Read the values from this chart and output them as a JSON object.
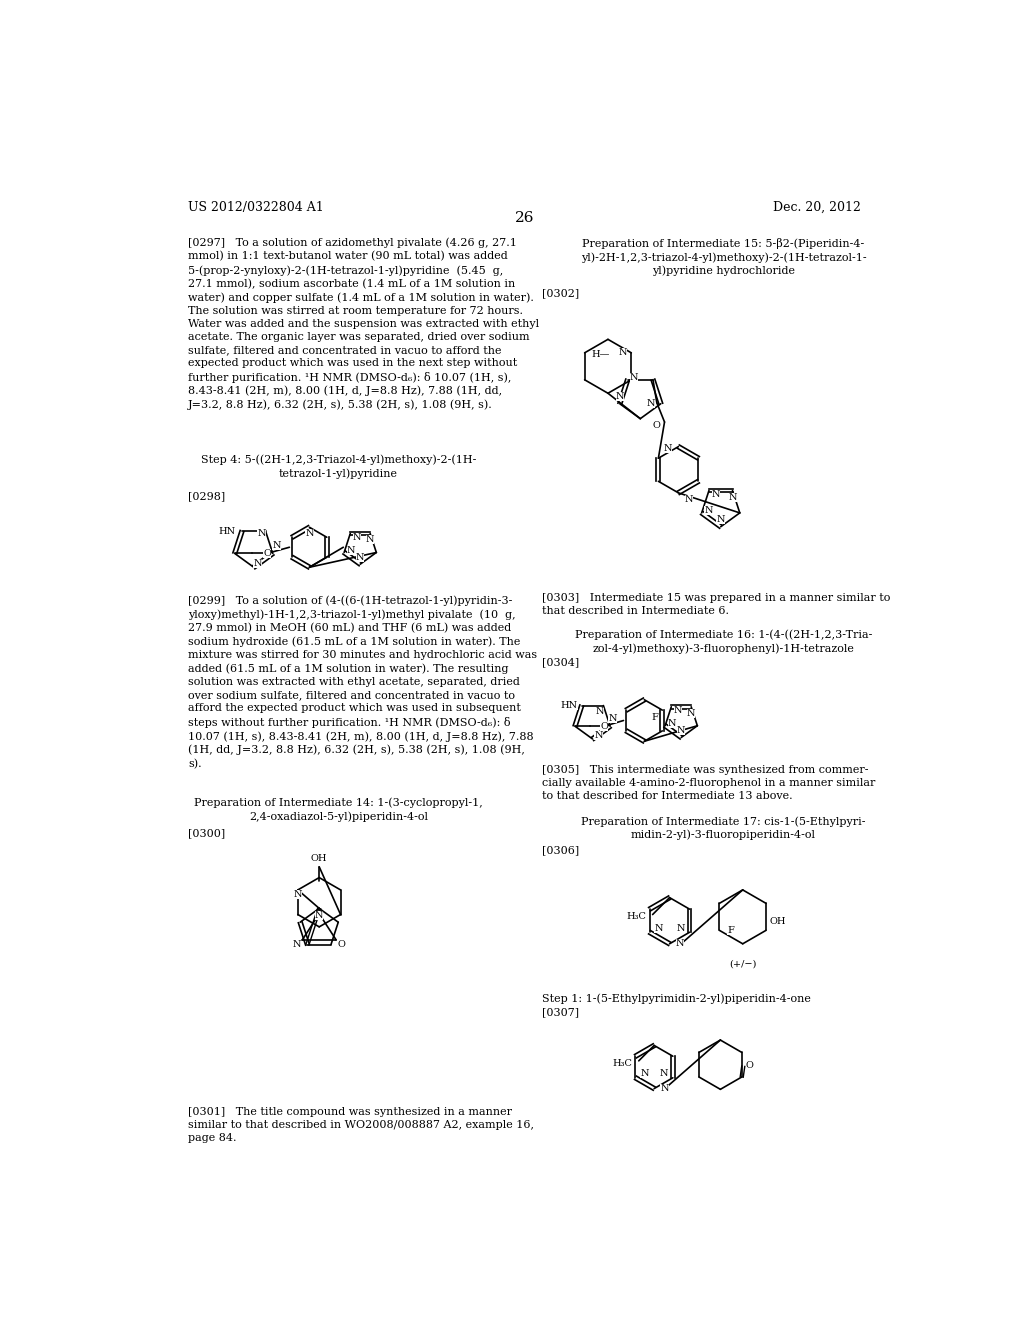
{
  "background_color": "#ffffff",
  "header_left": "US 2012/0322804 A1",
  "header_right": "Dec. 20, 2012",
  "page_number": "26",
  "font_size_body": 8.0,
  "font_size_header": 9.0,
  "font_size_page_num": 11.0,
  "font_size_label": 7.5,
  "font_size_atom": 7.0
}
